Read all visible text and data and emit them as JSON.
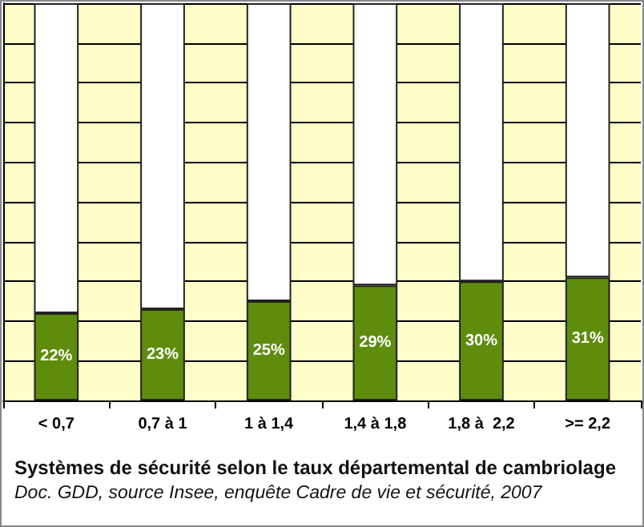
{
  "chart_data": {
    "type": "bar",
    "stacked": true,
    "title": "Systèmes de sécurité selon le taux départemental de cambriolage",
    "annotations": [
      "Doc. GDD, source Insee, enquête Cadre de vie et sécurité, 2007"
    ],
    "categories": [
      "< 0,7",
      "0,7 à 1",
      "1 à 1,4",
      "1,4 à 1,8",
      "1,8 à  2,2",
      ">= 2,2"
    ],
    "series": [
      {
        "color": "#5e8c0c",
        "values": [
          22,
          23,
          25,
          29,
          30,
          31
        ],
        "value_labels": [
          "22%",
          "23%",
          "25%",
          "29%",
          "30%",
          "31%"
        ]
      },
      {
        "color": "#ffffff",
        "values": [
          78,
          77,
          75,
          71,
          70,
          69
        ]
      }
    ],
    "ylim": [
      0,
      100
    ],
    "tick_labels": "x",
    "grid": "y"
  }
}
